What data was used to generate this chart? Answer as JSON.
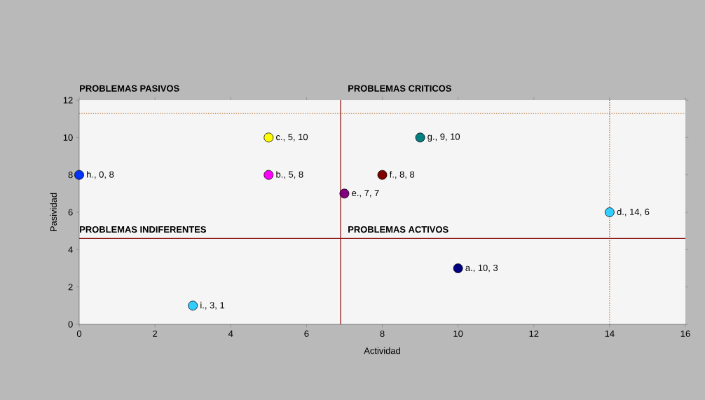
{
  "chart_data": {
    "type": "scatter",
    "xlabel": "Actividad",
    "ylabel": "Pasividad",
    "x": [
      10,
      5,
      5,
      14,
      7,
      8,
      9,
      0,
      3
    ],
    "values": [
      3,
      8,
      10,
      6,
      7,
      8,
      10,
      8,
      1
    ],
    "colors": [
      "#000080",
      "#ff00ff",
      "#ffff00",
      "#33ccff",
      "#800080",
      "#800000",
      "#008080",
      "#0033ff",
      "#33ccff"
    ],
    "value_labels": [
      "a., 10, 3",
      "b., 5, 8",
      "c., 5, 10",
      "d., 14, 6",
      "e., 7, 7",
      "f., 8, 8",
      "g., 9, 10",
      "h., 0, 8",
      "i., 3, 1"
    ],
    "xlim": [
      0,
      16
    ],
    "xticks": [
      0,
      2,
      4,
      6,
      8,
      10,
      12,
      14,
      16
    ],
    "ylim": [
      0,
      12
    ],
    "yticks": [
      0,
      2,
      4,
      6,
      8,
      10,
      12
    ],
    "grid": false,
    "ref_lines": [
      {
        "axis": "x",
        "value": 6.9,
        "color": "#8b1a1a",
        "line_style": "solid"
      },
      {
        "axis": "x",
        "value": 14,
        "color": "#b5651d",
        "line_style": "dotted"
      },
      {
        "axis": "y",
        "value": 11.3,
        "color": "#b5651d",
        "line_style": "dotted"
      },
      {
        "axis": "y",
        "value": 4.6,
        "color": "#8b1a1a",
        "line_style": "solid"
      }
    ],
    "annotations": [
      "PROBLEMAS PASIVOS",
      "PROBLEMAS CRITICOS",
      "PROBLEMAS INDIFERENTES",
      "PROBLEMAS ACTIVOS"
    ]
  }
}
